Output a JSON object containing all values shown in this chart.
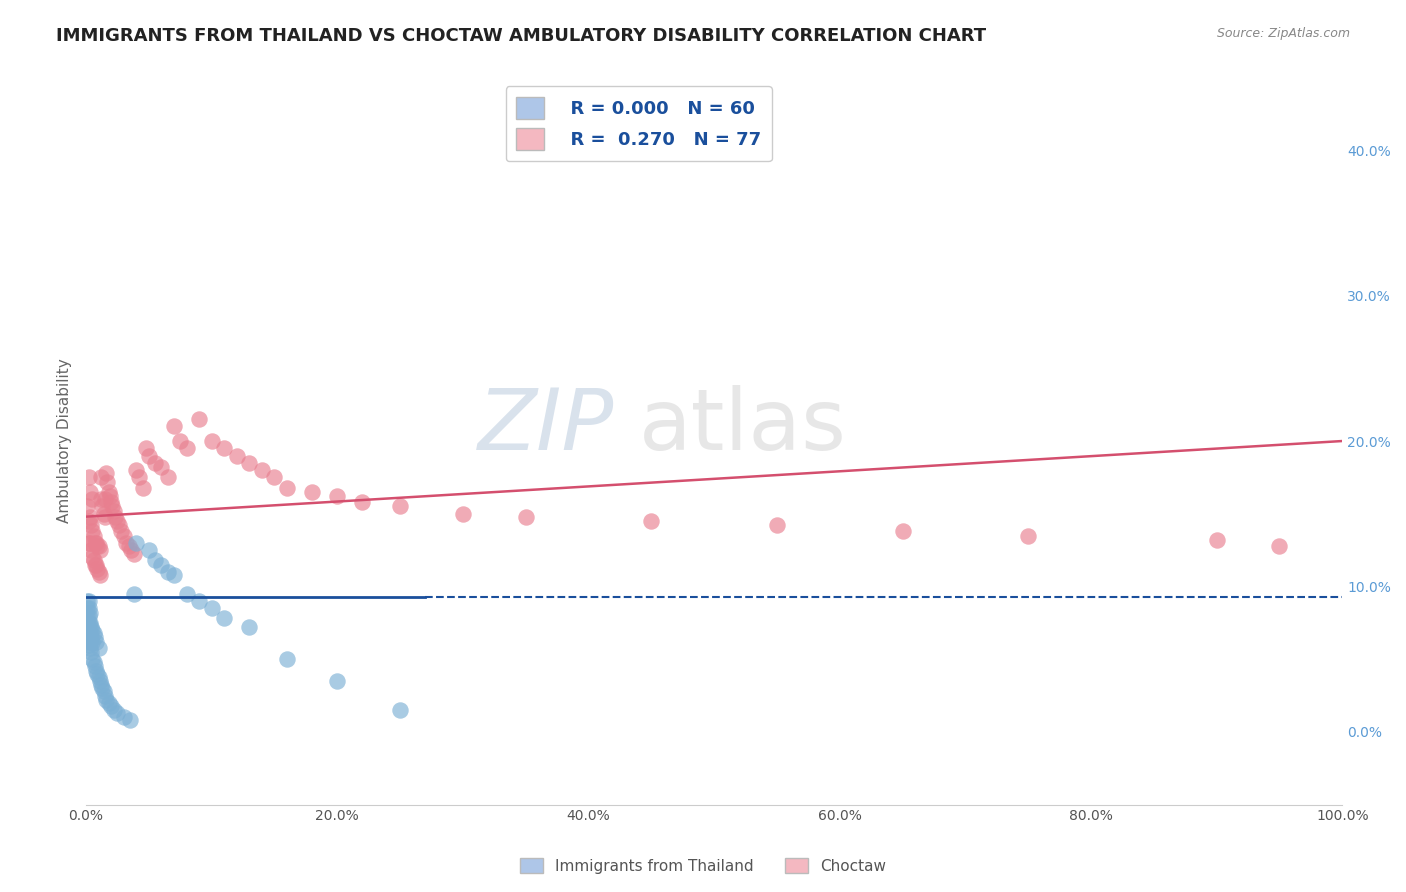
{
  "title": "IMMIGRANTS FROM THAILAND VS CHOCTAW AMBULATORY DISABILITY CORRELATION CHART",
  "source": "Source: ZipAtlas.com",
  "ylabel": "Ambulatory Disability",
  "xlim": [
    0.0,
    1.0
  ],
  "ylim": [
    -0.05,
    0.45
  ],
  "xticks": [
    0.0,
    0.2,
    0.4,
    0.6,
    0.8,
    1.0
  ],
  "xticklabels": [
    "0.0%",
    "20.0%",
    "40.0%",
    "60.0%",
    "80.0%",
    "100.0%"
  ],
  "yticks_right": [
    0.0,
    0.1,
    0.2,
    0.3,
    0.4
  ],
  "yticklabels_right": [
    "0.0%",
    "10.0%",
    "20.0%",
    "30.0%",
    "40.0%"
  ],
  "legend1_R": "0.000",
  "legend1_N": "60",
  "legend2_R": "0.270",
  "legend2_N": "77",
  "legend1_color": "#aec6e8",
  "legend2_color": "#f4b8c1",
  "scatter1_color": "#7bafd4",
  "scatter2_color": "#e87f8f",
  "line1_color": "#1a4f9c",
  "line2_color": "#d44f6e",
  "watermark_zip": "ZIP",
  "watermark_atlas": "atlas",
  "title_fontsize": 13,
  "axis_fontsize": 11,
  "tick_fontsize": 10,
  "thailand_x": [
    0.001,
    0.001,
    0.001,
    0.001,
    0.001,
    0.001,
    0.002,
    0.002,
    0.002,
    0.002,
    0.002,
    0.002,
    0.002,
    0.003,
    0.003,
    0.003,
    0.003,
    0.003,
    0.004,
    0.004,
    0.004,
    0.005,
    0.005,
    0.005,
    0.006,
    0.006,
    0.007,
    0.007,
    0.008,
    0.008,
    0.009,
    0.01,
    0.01,
    0.011,
    0.012,
    0.013,
    0.014,
    0.015,
    0.016,
    0.018,
    0.02,
    0.022,
    0.025,
    0.03,
    0.035,
    0.038,
    0.04,
    0.05,
    0.055,
    0.06,
    0.065,
    0.07,
    0.08,
    0.09,
    0.1,
    0.11,
    0.13,
    0.16,
    0.2,
    0.25
  ],
  "thailand_y": [
    0.065,
    0.07,
    0.075,
    0.08,
    0.085,
    0.09,
    0.06,
    0.065,
    0.07,
    0.075,
    0.08,
    0.085,
    0.09,
    0.058,
    0.062,
    0.068,
    0.075,
    0.082,
    0.055,
    0.065,
    0.072,
    0.05,
    0.062,
    0.07,
    0.048,
    0.068,
    0.045,
    0.065,
    0.042,
    0.062,
    0.04,
    0.038,
    0.058,
    0.035,
    0.032,
    0.03,
    0.028,
    0.025,
    0.022,
    0.02,
    0.018,
    0.015,
    0.013,
    0.01,
    0.008,
    0.095,
    0.13,
    0.125,
    0.118,
    0.115,
    0.11,
    0.108,
    0.095,
    0.09,
    0.085,
    0.078,
    0.072,
    0.05,
    0.035,
    0.015
  ],
  "choctaw_x": [
    0.001,
    0.002,
    0.002,
    0.002,
    0.003,
    0.003,
    0.003,
    0.004,
    0.004,
    0.005,
    0.005,
    0.005,
    0.006,
    0.006,
    0.007,
    0.007,
    0.008,
    0.008,
    0.009,
    0.009,
    0.01,
    0.01,
    0.011,
    0.011,
    0.012,
    0.012,
    0.013,
    0.014,
    0.015,
    0.015,
    0.016,
    0.017,
    0.018,
    0.019,
    0.02,
    0.021,
    0.022,
    0.023,
    0.025,
    0.026,
    0.028,
    0.03,
    0.032,
    0.034,
    0.036,
    0.038,
    0.04,
    0.042,
    0.045,
    0.048,
    0.05,
    0.055,
    0.06,
    0.065,
    0.07,
    0.075,
    0.08,
    0.09,
    0.1,
    0.11,
    0.12,
    0.13,
    0.14,
    0.15,
    0.16,
    0.18,
    0.2,
    0.22,
    0.25,
    0.3,
    0.35,
    0.45,
    0.55,
    0.65,
    0.75,
    0.9,
    0.95
  ],
  "choctaw_y": [
    0.155,
    0.13,
    0.145,
    0.175,
    0.13,
    0.148,
    0.165,
    0.125,
    0.142,
    0.12,
    0.138,
    0.16,
    0.118,
    0.135,
    0.115,
    0.13,
    0.115,
    0.13,
    0.112,
    0.128,
    0.11,
    0.128,
    0.108,
    0.125,
    0.16,
    0.175,
    0.155,
    0.15,
    0.148,
    0.16,
    0.178,
    0.172,
    0.165,
    0.162,
    0.158,
    0.155,
    0.152,
    0.148,
    0.145,
    0.142,
    0.138,
    0.135,
    0.13,
    0.128,
    0.125,
    0.122,
    0.18,
    0.175,
    0.168,
    0.195,
    0.19,
    0.185,
    0.182,
    0.175,
    0.21,
    0.2,
    0.195,
    0.215,
    0.2,
    0.195,
    0.19,
    0.185,
    0.18,
    0.175,
    0.168,
    0.165,
    0.162,
    0.158,
    0.155,
    0.15,
    0.148,
    0.145,
    0.142,
    0.138,
    0.135,
    0.132,
    0.128
  ]
}
